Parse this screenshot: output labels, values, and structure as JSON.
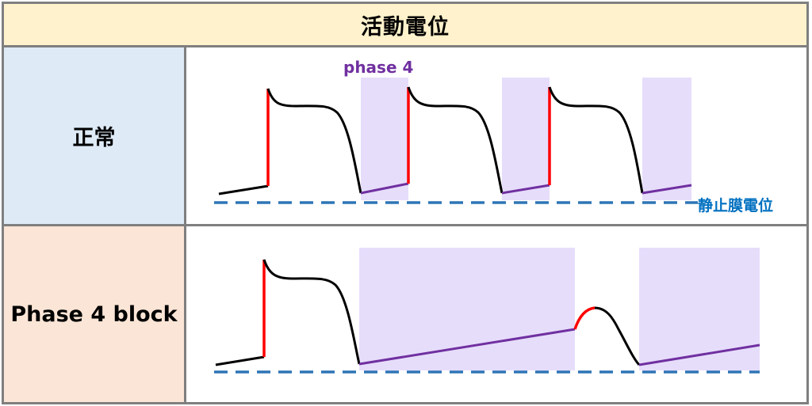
{
  "title": "活動電位",
  "rows": [
    {
      "label": "正常"
    },
    {
      "label": "Phase 4 block"
    }
  ],
  "annotations": {
    "phase4_label": "phase 4",
    "resting_potential_label": "静止膜電位"
  },
  "colors": {
    "title_bg": "#fff2cc",
    "normal_label_bg": "#deebf7",
    "block_label_bg": "#fbe5d6",
    "grid_border": "#7f7f7f",
    "phase4_shade": "#e6ddfb",
    "phase4_line": "#7030a0",
    "upstroke": "#ff0000",
    "action_potential": "#000000",
    "resting_line": "#2e75b6"
  }
}
